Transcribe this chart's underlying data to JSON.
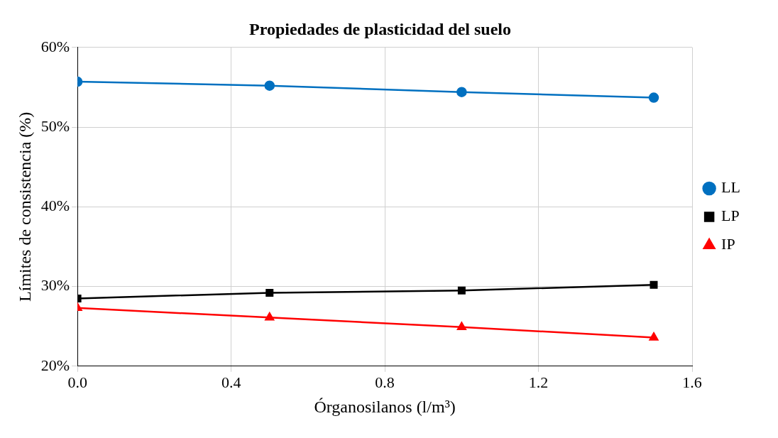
{
  "chart_data": {
    "type": "line",
    "title": "Propiedades de plasticidad del suelo",
    "xlabel": "Órganosilanos (l/m³)",
    "ylabel": "Límites de consistencia (%)",
    "x": [
      0,
      0.5,
      1,
      1.5
    ],
    "series": [
      {
        "name": "LL",
        "color": "#0070c0",
        "marker": "circle",
        "values": [
          55.7,
          55.2,
          54.4,
          53.7
        ]
      },
      {
        "name": "LP",
        "color": "#000000",
        "marker": "square",
        "values": [
          28.5,
          29.2,
          29.5,
          30.2
        ]
      },
      {
        "name": "IP",
        "color": "#ff0000",
        "marker": "triangle",
        "values": [
          27.3,
          26.1,
          24.9,
          23.6
        ]
      }
    ],
    "xlim": [
      0,
      1.6
    ],
    "xticks": [
      {
        "value": 0,
        "label": "0.0"
      },
      {
        "value": 0.4,
        "label": "0.4"
      },
      {
        "value": 0.8,
        "label": "0.8"
      },
      {
        "value": 1.2,
        "label": "1.2"
      },
      {
        "value": 1.6,
        "label": "1.6"
      }
    ],
    "ylim": [
      20,
      60
    ],
    "yticks": [
      {
        "value": 20,
        "label": "20%"
      },
      {
        "value": 30,
        "label": "30%"
      },
      {
        "value": 40,
        "label": "40%"
      },
      {
        "value": 50,
        "label": "50%"
      },
      {
        "value": 60,
        "label": "60%"
      }
    ],
    "grid": true,
    "legend": "right",
    "line_style": "solid"
  }
}
